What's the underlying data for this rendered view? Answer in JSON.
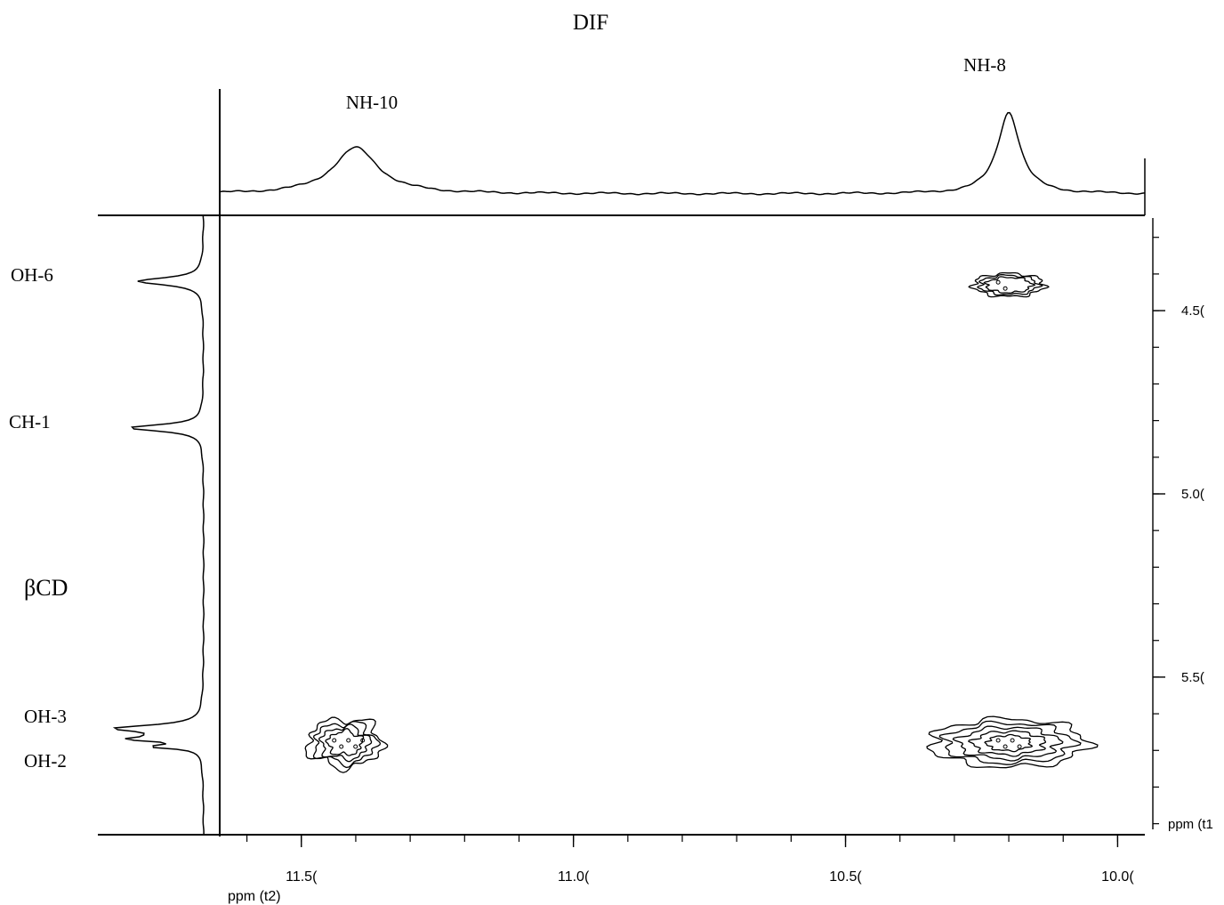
{
  "chart_data": {
    "type": "2D NMR contour",
    "title": "DIF",
    "x_axis": {
      "label": "ppm (t2)",
      "ticks": [
        "11.5(",
        "11.0(",
        "10.5(",
        "10.0("
      ],
      "tick_values": [
        11.5,
        11.0,
        10.5,
        10.0
      ],
      "range": [
        11.65,
        9.95
      ],
      "reversed": true
    },
    "y_axis": {
      "label": "ppm (t1",
      "ticks": [
        "4.5(",
        "5.0(",
        "5.5("
      ],
      "tick_values": [
        4.5,
        5.0,
        5.5
      ],
      "range": [
        4.24,
        5.93
      ],
      "reversed": true
    },
    "top_projection_labels": [
      {
        "label": "NH-10",
        "ppm": 11.4
      },
      {
        "label": "NH-8",
        "ppm": 10.2
      }
    ],
    "left_projection_labels": [
      {
        "label": "OH-6",
        "ppm": 4.42
      },
      {
        "label": "CH-1",
        "ppm": 4.83
      },
      {
        "label": "βCD",
        "ppm": null
      },
      {
        "label": "OH-3",
        "ppm": 5.64
      },
      {
        "label": "OH-2",
        "ppm": 5.68
      }
    ],
    "cross_peaks": [
      {
        "x": 10.2,
        "y": 4.43,
        "intensity": "medium"
      },
      {
        "x": 10.2,
        "y": 5.68,
        "intensity": "strong"
      },
      {
        "x": 11.42,
        "y": 5.68,
        "intensity": "weak"
      }
    ],
    "grid": false
  }
}
